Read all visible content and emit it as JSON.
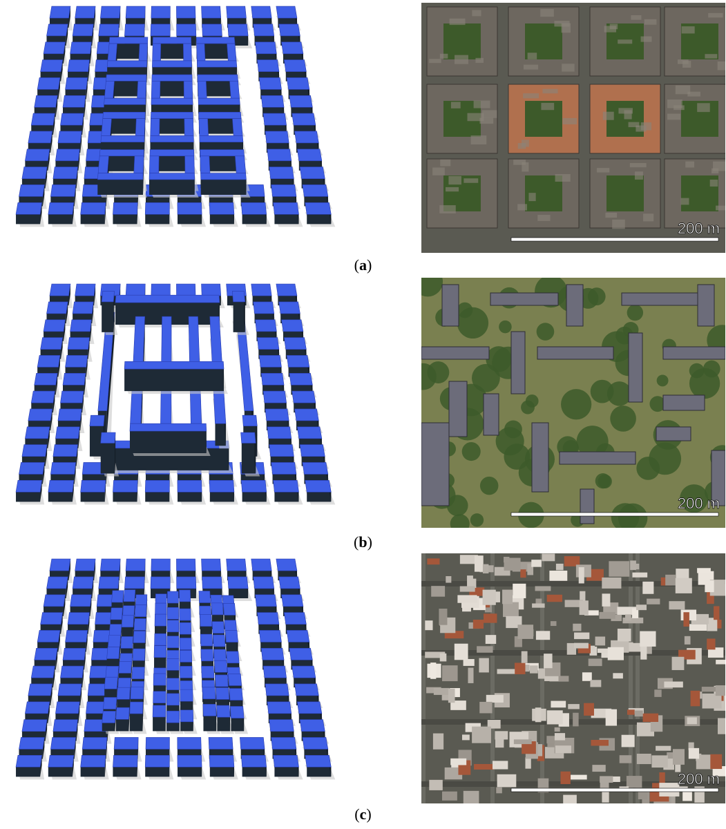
{
  "panels": [
    {
      "id": "a",
      "caption_open": "(",
      "caption_letter": "a",
      "caption_close": ")",
      "scale_label": "200 m"
    },
    {
      "id": "b",
      "caption_open": "(",
      "caption_letter": "b",
      "caption_close": ")",
      "scale_label": "200 m"
    },
    {
      "id": "c",
      "caption_open": "(",
      "caption_letter": "c",
      "caption_close": ")",
      "scale_label": "200 m"
    }
  ],
  "colors": {
    "building_roof": "#3f5fe6",
    "building_side": "#1e2a36",
    "shadow": "#c8c8c8",
    "aerial_street": "#6b6b63",
    "aerial_roof_red": "#b0704e",
    "aerial_green": "#3d5a2a"
  }
}
